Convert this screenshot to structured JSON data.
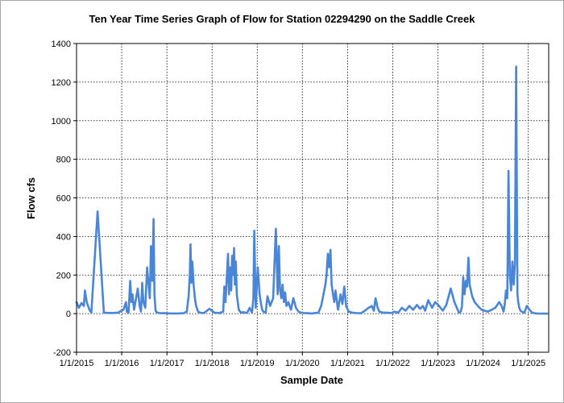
{
  "chart_data": {
    "type": "line",
    "title": "Ten Year Time Series Graph of Flow for Station 02294290 on the Saddle Creek",
    "xlabel": "Sample Date",
    "ylabel": "Flow cfs",
    "ylim": [
      -200,
      1400
    ],
    "xlim": [
      "2015-01-01",
      "2025-06-15"
    ],
    "y_ticks": [
      -200,
      0,
      200,
      400,
      600,
      800,
      1000,
      1200,
      1400
    ],
    "x_ticks": [
      "1/1/2015",
      "1/1/2016",
      "1/1/2017",
      "1/1/2018",
      "1/1/2019",
      "1/1/2020",
      "1/1/2021",
      "1/1/2022",
      "1/1/2023",
      "1/1/2024",
      "1/1/2025"
    ],
    "grid": true,
    "legend": "none",
    "line_color": "#4a86d8",
    "series": [
      {
        "x": [
          "2015-01-01",
          "2015-01-20",
          "2015-02-10",
          "2015-03-01",
          "2015-03-10",
          "2015-03-25",
          "2015-04-15",
          "2015-05-01",
          "2015-06-20",
          "2015-08-10",
          "2015-10-10",
          "2015-12-01",
          "2016-01-15",
          "2016-02-05",
          "2016-02-12",
          "2016-02-25",
          "2016-03-10",
          "2016-03-20",
          "2016-03-28",
          "2016-04-10",
          "2016-05-10",
          "2016-05-25",
          "2016-06-05",
          "2016-06-15",
          "2016-06-25",
          "2016-07-10",
          "2016-07-25",
          "2016-08-15",
          "2016-08-25",
          "2016-09-05",
          "2016-09-15",
          "2016-09-22",
          "2016-10-01",
          "2016-10-15",
          "2016-11-01",
          "2016-11-20",
          "2016-12-20",
          "2017-01-30",
          "2017-02-28",
          "2017-03-31",
          "2017-05-15",
          "2017-06-10",
          "2017-06-25",
          "2017-07-05",
          "2017-07-10",
          "2017-07-18",
          "2017-07-25",
          "2017-08-05",
          "2017-08-15",
          "2017-08-25",
          "2017-09-10",
          "2017-09-25",
          "2017-10-15",
          "2017-11-01",
          "2017-12-10",
          "2018-01-20",
          "2018-03-01",
          "2018-04-01",
          "2018-04-10",
          "2018-04-20",
          "2018-05-10",
          "2018-05-18",
          "2018-05-25",
          "2018-06-05",
          "2018-06-12",
          "2018-06-20",
          "2018-06-28",
          "2018-07-05",
          "2018-07-12",
          "2018-07-20",
          "2018-07-28",
          "2018-08-05",
          "2018-08-15",
          "2018-08-25",
          "2018-09-10",
          "2018-09-25",
          "2018-10-10",
          "2018-11-01",
          "2018-11-20",
          "2018-12-01",
          "2018-12-08",
          "2018-12-20",
          "2019-01-05",
          "2019-01-20",
          "2019-02-01",
          "2019-02-10",
          "2019-02-20",
          "2019-03-10",
          "2019-03-25",
          "2019-04-15",
          "2019-05-10",
          "2019-06-01",
          "2019-06-15",
          "2019-06-25",
          "2019-07-05",
          "2019-07-15",
          "2019-07-25",
          "2019-08-05",
          "2019-08-15",
          "2019-08-25",
          "2019-09-10",
          "2019-10-01",
          "2019-10-20",
          "2019-11-10",
          "2019-12-01",
          "2019-12-20",
          "2020-01-10",
          "2020-01-30",
          "2020-02-20",
          "2020-03-15",
          "2020-04-10",
          "2020-05-10",
          "2020-06-01",
          "2020-06-20",
          "2020-07-05",
          "2020-07-15",
          "2020-07-25",
          "2020-08-05",
          "2020-08-15",
          "2020-08-25",
          "2020-09-05",
          "2020-09-15",
          "2020-09-25",
          "2020-10-15",
          "2020-11-05",
          "2020-11-20",
          "2020-12-05",
          "2020-12-20",
          "2021-01-10",
          "2021-02-10",
          "2021-03-10",
          "2021-04-20",
          "2021-05-20",
          "2021-06-20",
          "2021-07-15",
          "2021-08-01",
          "2021-08-15",
          "2021-09-01",
          "2021-09-15",
          "2021-10-15",
          "2021-11-20",
          "2021-12-20",
          "2022-01-15",
          "2022-02-15",
          "2022-03-15",
          "2022-04-15",
          "2022-05-15",
          "2022-06-15",
          "2022-07-15",
          "2022-08-10",
          "2022-09-01",
          "2022-09-20",
          "2022-10-15",
          "2022-11-15",
          "2022-12-10",
          "2023-01-10",
          "2023-02-10",
          "2023-03-10",
          "2023-04-15",
          "2023-05-15",
          "2023-06-10",
          "2023-06-20",
          "2023-07-05",
          "2023-07-15",
          "2023-07-25",
          "2023-08-05",
          "2023-08-15",
          "2023-08-25",
          "2023-09-05",
          "2023-09-15",
          "2023-10-05",
          "2023-10-25",
          "2023-11-20",
          "2023-12-20",
          "2024-01-15",
          "2024-02-10",
          "2024-03-10",
          "2024-04-10",
          "2024-05-10",
          "2024-05-30",
          "2024-06-15",
          "2024-06-25",
          "2024-07-05",
          "2024-07-15",
          "2024-07-25",
          "2024-08-05",
          "2024-08-15",
          "2024-08-25",
          "2024-09-05",
          "2024-09-15",
          "2024-09-25",
          "2024-10-05",
          "2024-10-12",
          "2024-10-20",
          "2024-10-30",
          "2024-11-10",
          "2024-11-30",
          "2024-12-20",
          "2025-01-10",
          "2025-02-01",
          "2025-02-20",
          "2025-03-10",
          "2025-04-01",
          "2025-05-01",
          "2025-06-01"
        ],
        "y": [
          60,
          30,
          55,
          40,
          120,
          60,
          20,
          5,
          530,
          5,
          3,
          5,
          20,
          60,
          10,
          5,
          170,
          60,
          100,
          20,
          130,
          40,
          10,
          160,
          60,
          30,
          240,
          80,
          350,
          170,
          490,
          100,
          15,
          5,
          3,
          2,
          2,
          1,
          1,
          1,
          2,
          10,
          90,
          200,
          360,
          160,
          270,
          150,
          80,
          40,
          10,
          5,
          3,
          5,
          25,
          5,
          3,
          10,
          140,
          60,
          310,
          100,
          240,
          120,
          300,
          200,
          340,
          150,
          270,
          100,
          60,
          20,
          10,
          5,
          8,
          5,
          3,
          30,
          5,
          80,
          430,
          30,
          240,
          100,
          50,
          20,
          10,
          5,
          90,
          40,
          80,
          440,
          100,
          350,
          120,
          80,
          150,
          60,
          110,
          40,
          60,
          20,
          80,
          30,
          10,
          5,
          3,
          2,
          2,
          1,
          3,
          5,
          40,
          100,
          150,
          200,
          310,
          240,
          330,
          150,
          100,
          60,
          120,
          20,
          100,
          50,
          140,
          40,
          10,
          5,
          3,
          2,
          15,
          30,
          40,
          15,
          80,
          30,
          10,
          5,
          5,
          3,
          10,
          5,
          30,
          15,
          40,
          20,
          45,
          25,
          40,
          15,
          70,
          30,
          60,
          40,
          15,
          45,
          130,
          60,
          20,
          5,
          10,
          40,
          190,
          100,
          170,
          140,
          290,
          150,
          90,
          60,
          40,
          20,
          15,
          10,
          20,
          30,
          60,
          40,
          10,
          50,
          120,
          80,
          740,
          200,
          120,
          270,
          150,
          260,
          1280,
          100,
          60,
          30,
          15,
          10,
          5,
          40,
          20,
          5,
          2,
          1,
          0,
          0,
          0
        ]
      }
    ]
  }
}
